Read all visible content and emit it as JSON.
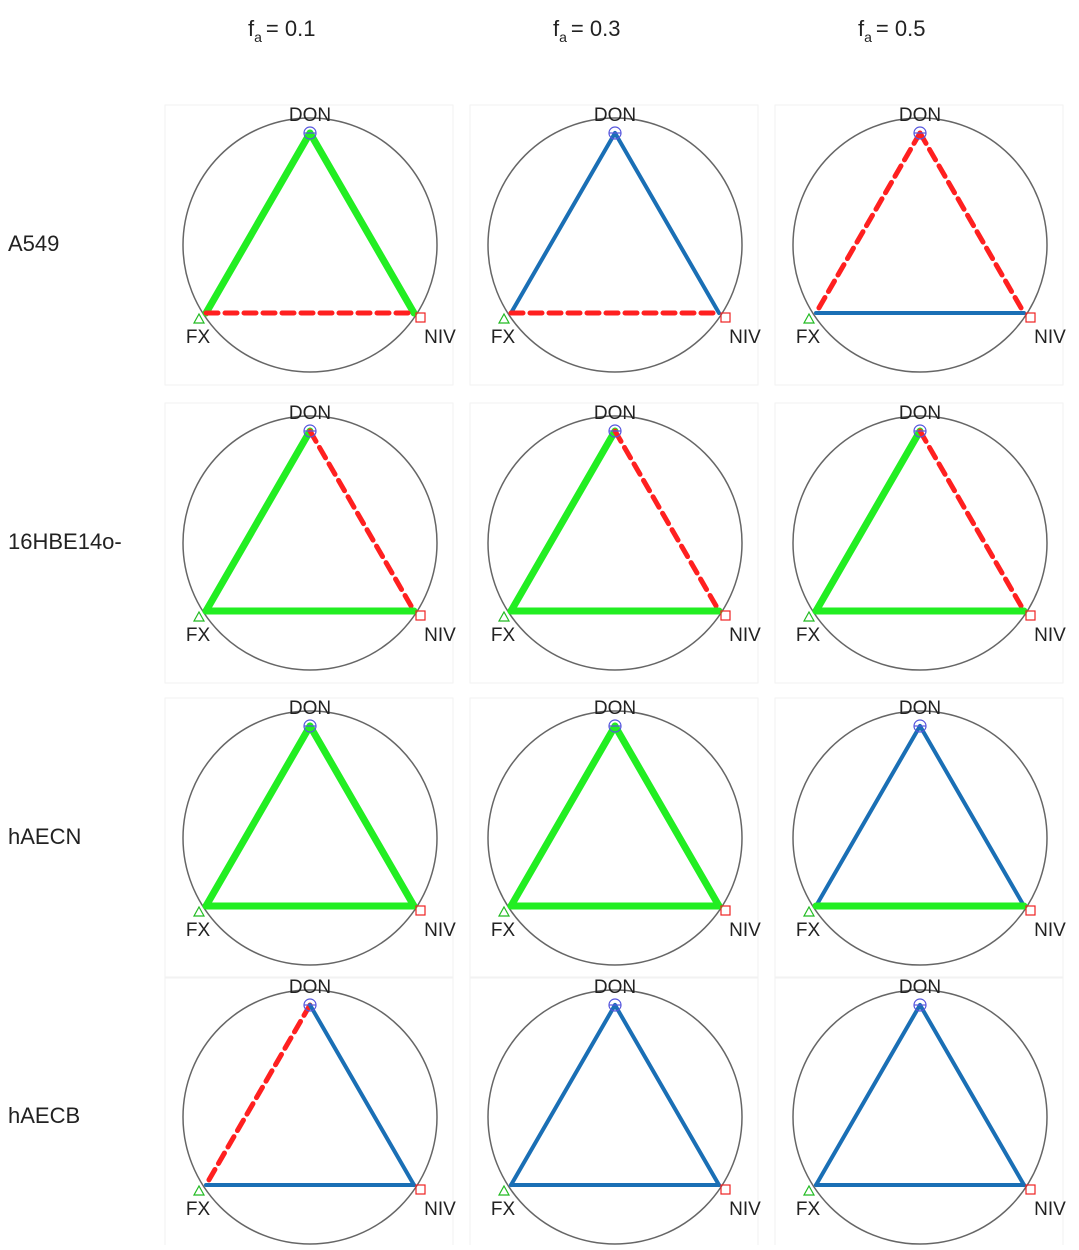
{
  "columns": [
    {
      "symbol": "f",
      "subscript": "a",
      "value": "= 0.1"
    },
    {
      "symbol": "f",
      "subscript": "a",
      "value": "= 0.3"
    },
    {
      "symbol": "f",
      "subscript": "a",
      "value": "= 0.5"
    }
  ],
  "nodes": [
    "DON",
    "FX",
    "NIV"
  ],
  "rows": [
    {
      "label": "A549",
      "panels": [
        {
          "edges": [
            {
              "color": "#22ee22",
              "dashed": false
            },
            {
              "color": "#22ee22",
              "dashed": false
            },
            {
              "color": "#ff2020",
              "dashed": true
            }
          ]
        },
        {
          "edges": [
            {
              "color": "#1a6fb5",
              "dashed": false
            },
            {
              "color": "#1a6fb5",
              "dashed": false
            },
            {
              "color": "#ff2020",
              "dashed": true
            }
          ]
        },
        {
          "edges": [
            {
              "color": "#ff2020",
              "dashed": true
            },
            {
              "color": "#ff2020",
              "dashed": true
            },
            {
              "color": "#1a6fb5",
              "dashed": false
            }
          ]
        }
      ]
    },
    {
      "label": "16HBE14o-",
      "panels": [
        {
          "edges": [
            {
              "color": "#22ee22",
              "dashed": false
            },
            {
              "color": "#ff2020",
              "dashed": true
            },
            {
              "color": "#22ee22",
              "dashed": false
            }
          ]
        },
        {
          "edges": [
            {
              "color": "#22ee22",
              "dashed": false
            },
            {
              "color": "#ff2020",
              "dashed": true
            },
            {
              "color": "#22ee22",
              "dashed": false
            }
          ]
        },
        {
          "edges": [
            {
              "color": "#22ee22",
              "dashed": false
            },
            {
              "color": "#ff2020",
              "dashed": true
            },
            {
              "color": "#22ee22",
              "dashed": false
            }
          ]
        }
      ]
    },
    {
      "label": "hAECN",
      "panels": [
        {
          "edges": [
            {
              "color": "#22ee22",
              "dashed": false
            },
            {
              "color": "#22ee22",
              "dashed": false
            },
            {
              "color": "#22ee22",
              "dashed": false
            }
          ]
        },
        {
          "edges": [
            {
              "color": "#22ee22",
              "dashed": false
            },
            {
              "color": "#22ee22",
              "dashed": false
            },
            {
              "color": "#22ee22",
              "dashed": false
            }
          ]
        },
        {
          "edges": [
            {
              "color": "#1a6fb5",
              "dashed": false
            },
            {
              "color": "#1a6fb5",
              "dashed": false
            },
            {
              "color": "#22ee22",
              "dashed": false
            }
          ]
        }
      ]
    },
    {
      "label": "hAECB",
      "panels": [
        {
          "edges": [
            {
              "color": "#ff2020",
              "dashed": true
            },
            {
              "color": "#1a6fb5",
              "dashed": false
            },
            {
              "color": "#1a6fb5",
              "dashed": false
            }
          ]
        },
        {
          "edges": [
            {
              "color": "#1a6fb5",
              "dashed": false
            },
            {
              "color": "#1a6fb5",
              "dashed": false
            },
            {
              "color": "#1a6fb5",
              "dashed": false
            }
          ]
        },
        {
          "edges": [
            {
              "color": "#1a6fb5",
              "dashed": false
            },
            {
              "color": "#1a6fb5",
              "dashed": false
            },
            {
              "color": "#1a6fb5",
              "dashed": false
            }
          ]
        }
      ]
    }
  ]
}
